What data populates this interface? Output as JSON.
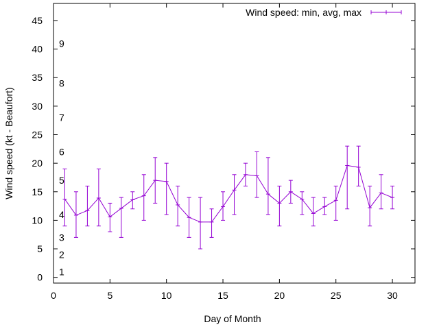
{
  "chart_data": {
    "type": "line",
    "title": "",
    "xlabel": "Day of Month",
    "ylabel": "Wind speed (kt - Beaufort)",
    "xlim": [
      0,
      32
    ],
    "ylim": [
      -1,
      48
    ],
    "xticks": [
      0,
      5,
      10,
      15,
      20,
      25,
      30
    ],
    "yticks": [
      0,
      5,
      10,
      15,
      20,
      25,
      30,
      35,
      40,
      45
    ],
    "beaufort_labels": [
      {
        "text": "1",
        "y": 1
      },
      {
        "text": "2",
        "y": 4
      },
      {
        "text": "3",
        "y": 7
      },
      {
        "text": "4",
        "y": 11
      },
      {
        "text": "5",
        "y": 17
      },
      {
        "text": "6",
        "y": 22
      },
      {
        "text": "7",
        "y": 28
      },
      {
        "text": "8",
        "y": 34
      },
      {
        "text": "9",
        "y": 41
      }
    ],
    "grid": false,
    "legend_position": "top-right",
    "series": [
      {
        "name": "Wind speed: min, avg, max",
        "color": "#9400d3",
        "x": [
          1,
          2,
          3,
          4,
          5,
          6,
          7,
          8,
          9,
          10,
          11,
          12,
          13,
          14,
          15,
          16,
          17,
          18,
          19,
          20,
          21,
          22,
          23,
          24,
          25,
          26,
          27,
          28,
          29,
          30
        ],
        "avg": [
          13.7,
          10.9,
          11.7,
          13.9,
          10.6,
          12.1,
          13.6,
          14.3,
          17.0,
          16.8,
          12.7,
          10.5,
          9.7,
          9.7,
          12.4,
          15.3,
          18.0,
          17.8,
          14.6,
          13.0,
          15.0,
          13.7,
          11.2,
          12.4,
          13.5,
          19.6,
          19.3,
          12.2,
          14.8,
          14.0
        ],
        "min": [
          9,
          7,
          9,
          9,
          8,
          7,
          12,
          10,
          13,
          11,
          9,
          7,
          5,
          7,
          10,
          11,
          16,
          14,
          11,
          9,
          13,
          11,
          9,
          11,
          10,
          12,
          16,
          9,
          12,
          12
        ],
        "max": [
          19,
          15,
          16,
          19,
          13,
          14,
          15,
          18,
          21,
          20,
          16,
          14,
          14,
          12,
          15,
          18,
          20,
          22,
          21,
          16,
          17,
          15,
          14,
          14,
          16,
          23,
          23,
          16,
          18,
          16
        ]
      }
    ]
  }
}
